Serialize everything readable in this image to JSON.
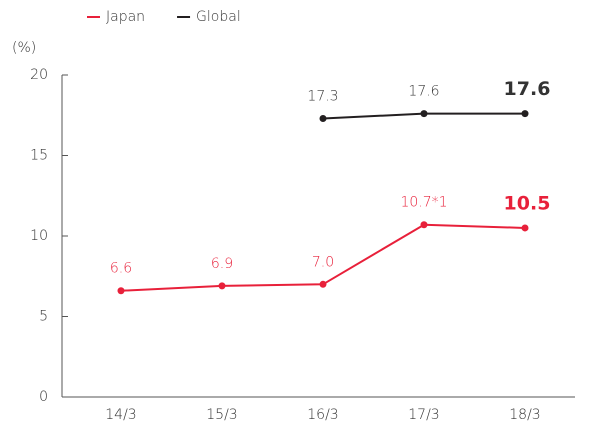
{
  "chart_data": {
    "type": "line",
    "y_axis_label": "(%)",
    "categories": [
      "14/3",
      "15/3",
      "16/3",
      "17/3",
      "18/3"
    ],
    "series": [
      {
        "name": "Japan",
        "color": "#e8203a",
        "values": [
          6.6,
          6.9,
          7.0,
          10.7,
          10.5
        ],
        "value_labels": [
          "6.6",
          "6.9",
          "7.0",
          "10.7*1",
          "10.5"
        ]
      },
      {
        "name": "Global",
        "color": "#231f20",
        "values": [
          null,
          null,
          17.3,
          17.6,
          17.6
        ],
        "value_labels": [
          null,
          null,
          "17.3",
          "17.6",
          "17.6"
        ]
      }
    ],
    "ylim": [
      0,
      20
    ],
    "yticks": [
      0,
      5,
      10,
      15,
      20
    ],
    "grid": false,
    "legend": "top-left"
  }
}
